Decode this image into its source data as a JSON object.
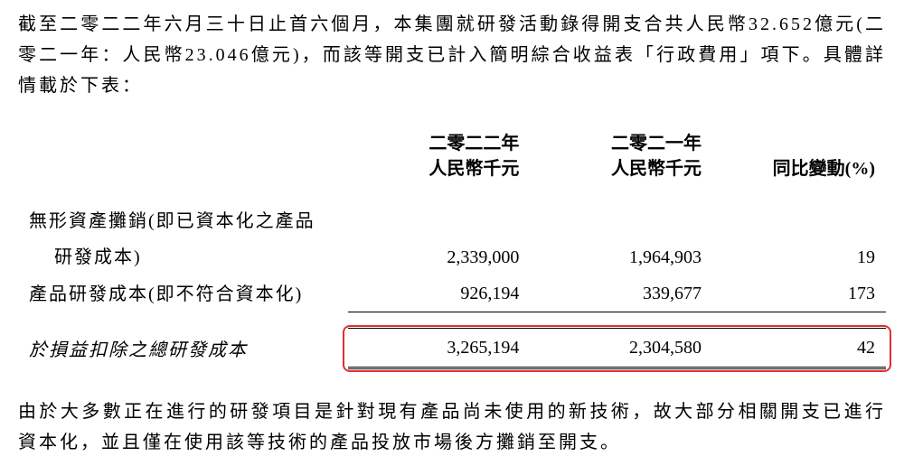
{
  "intro": "截至二零二二年六月三十日止首六個月，本集團就研發活動錄得開支合共人民幣32.652億元(二零二一年：人民幣23.046億元)，而該等開支已計入簡明綜合收益表「行政費用」項下。具體詳情載於下表：",
  "table": {
    "headers": {
      "y2022_line1": "二零二二年",
      "y2022_line2": "人民幣千元",
      "y2021_line1": "二零二一年",
      "y2021_line2": "人民幣千元",
      "change": "同比變動(%)"
    },
    "row1": {
      "label_line1": "無形資產攤銷(即已資本化之產品",
      "label_line2": "研發成本)",
      "y2022": "2,339,000",
      "y2021": "1,964,903",
      "change": "19"
    },
    "row2": {
      "label": "產品研發成本(即不符合資本化)",
      "y2022": "926,194",
      "y2021": "339,677",
      "change": "173"
    },
    "total": {
      "label": "於損益扣除之總研發成本",
      "y2022": "3,265,194",
      "y2021": "2,304,580",
      "change": "42"
    }
  },
  "footer": "由於大多數正在進行的研發項目是針對現有產品尚未使用的新技術，故大部分相關開支已進行資本化，並且僅在使用該等技術的產品投放市場後方攤銷至開支。",
  "colors": {
    "text": "#000000",
    "background": "#ffffff",
    "highlight_border": "#e03030"
  }
}
